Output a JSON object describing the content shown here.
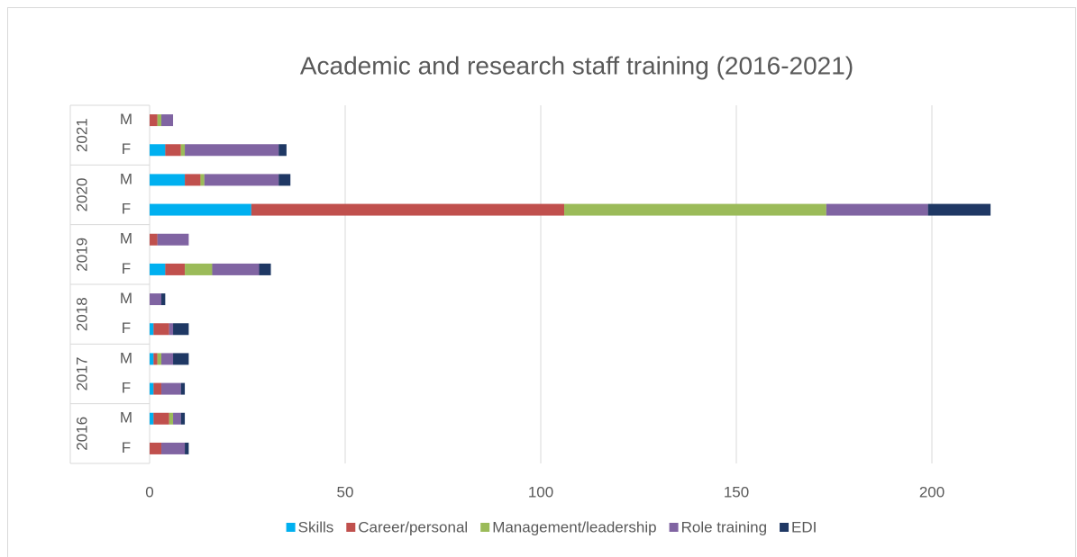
{
  "chart_data": {
    "type": "bar",
    "orientation": "horizontal",
    "stacked": true,
    "title": "Academic and research staff training (2016-2021)",
    "groups": [
      {
        "name": "2021",
        "categories": [
          "M",
          "F"
        ]
      },
      {
        "name": "2020",
        "categories": [
          "M",
          "F"
        ]
      },
      {
        "name": "2019",
        "categories": [
          "M",
          "F"
        ]
      },
      {
        "name": "2018",
        "categories": [
          "M",
          "F"
        ]
      },
      {
        "name": "2017",
        "categories": [
          "M",
          "F"
        ]
      },
      {
        "name": "2016",
        "categories": [
          "M",
          "F"
        ]
      }
    ],
    "series": [
      {
        "name": "Skills",
        "color": "#00b0f0",
        "values": [
          0,
          4,
          9,
          26,
          0,
          4,
          0,
          1,
          1,
          1,
          1,
          0
        ]
      },
      {
        "name": "Career/personal",
        "color": "#c0504d",
        "values": [
          2,
          4,
          4,
          80,
          2,
          5,
          0,
          4,
          1,
          2,
          4,
          3
        ]
      },
      {
        "name": "Management/leadership",
        "color": "#9bbb59",
        "values": [
          1,
          1,
          1,
          67,
          0,
          7,
          0,
          0,
          1,
          0,
          1,
          0
        ]
      },
      {
        "name": "Role training",
        "color": "#8064a2",
        "values": [
          3,
          24,
          19,
          26,
          8,
          12,
          3,
          1,
          3,
          5,
          2,
          6
        ]
      },
      {
        "name": "EDI",
        "color": "#1f3864",
        "values": [
          0,
          2,
          3,
          16,
          0,
          3,
          1,
          4,
          4,
          1,
          1,
          1
        ]
      }
    ],
    "xlim": [
      0,
      220
    ],
    "xticks": [
      0,
      50,
      100,
      150,
      200
    ],
    "grid": true,
    "legend": "bottom"
  }
}
